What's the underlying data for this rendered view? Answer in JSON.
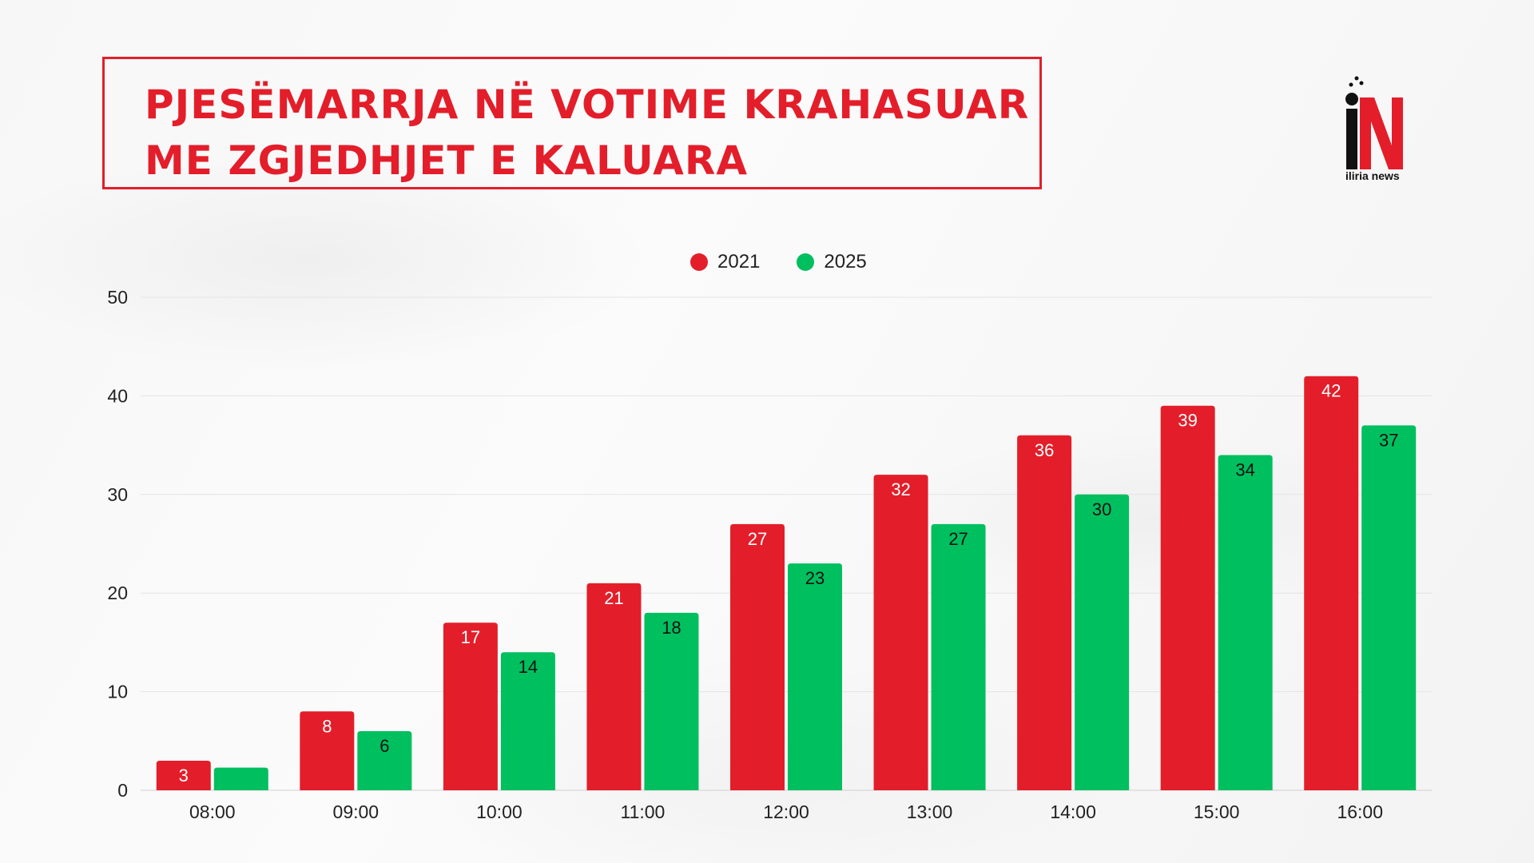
{
  "title_lines": [
    "PJESËMARRJA NË VOTIME KRAHASUAR",
    "ME ZGJEDHJET E KALUARA"
  ],
  "logo": {
    "text": "iliria news"
  },
  "colors": {
    "red": "#e31e2a",
    "green": "#00bf5f"
  },
  "chart_data": {
    "type": "bar",
    "categories": [
      "08:00",
      "09:00",
      "10:00",
      "11:00",
      "12:00",
      "13:00",
      "14:00",
      "15:00",
      "16:00"
    ],
    "series": [
      {
        "name": "2021",
        "color": "#e31e2a",
        "label_color": "#ffffff",
        "values": [
          3,
          8,
          17,
          21,
          27,
          32,
          36,
          39,
          42
        ],
        "labels": [
          "3",
          "8",
          "17",
          "21",
          "27",
          "32",
          "36",
          "39",
          "42"
        ]
      },
      {
        "name": "2025",
        "color": "#00bf5f",
        "label_color": "#111111",
        "values": [
          2.3,
          6,
          14,
          18,
          23,
          27,
          30,
          34,
          37
        ],
        "labels": [
          "",
          "6",
          "14",
          "18",
          "23",
          "27",
          "30",
          "34",
          "37"
        ]
      }
    ],
    "ylim": [
      0,
      50
    ],
    "yticks": [
      0,
      10,
      20,
      30,
      40,
      50
    ],
    "legend": "top-center",
    "grid": true
  }
}
